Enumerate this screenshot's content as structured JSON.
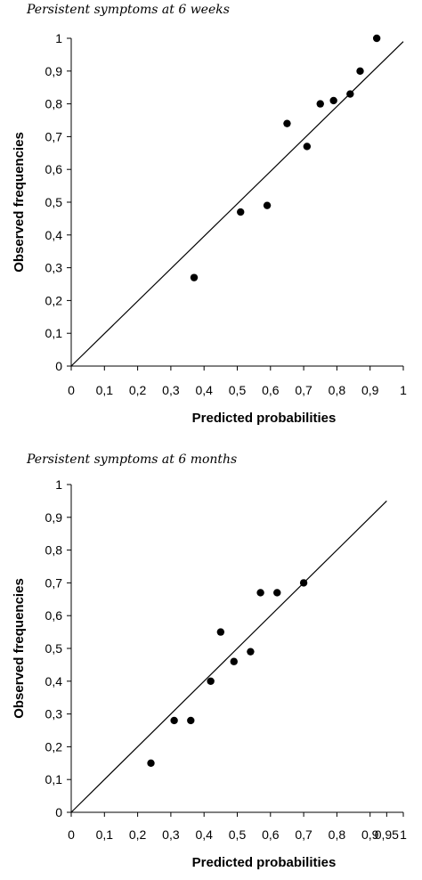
{
  "chart_data": [
    {
      "type": "scatter",
      "title": "Persistent symptoms at 6 weeks",
      "xlabel": "Predicted probabilities",
      "ylabel": "Observed frequencies",
      "xlim": [
        0,
        1
      ],
      "ylim": [
        0,
        1
      ],
      "xticks": [
        "0",
        "0,1",
        "0,2",
        "0,3",
        "0,4",
        "0,5",
        "0,6",
        "0,7",
        "0,8",
        "0,9",
        "1"
      ],
      "yticks": [
        "0",
        "0,1",
        "0,2",
        "0,3",
        "0,4",
        "0,5",
        "0,6",
        "0,7",
        "0,8",
        "0,9",
        "1"
      ],
      "reference_line": {
        "from": [
          0,
          0
        ],
        "to": [
          1,
          0.99
        ]
      },
      "points": [
        {
          "x": 0.37,
          "y": 0.27
        },
        {
          "x": 0.51,
          "y": 0.47
        },
        {
          "x": 0.59,
          "y": 0.49
        },
        {
          "x": 0.65,
          "y": 0.74
        },
        {
          "x": 0.71,
          "y": 0.67
        },
        {
          "x": 0.75,
          "y": 0.8
        },
        {
          "x": 0.79,
          "y": 0.81
        },
        {
          "x": 0.84,
          "y": 0.83
        },
        {
          "x": 0.87,
          "y": 0.9
        },
        {
          "x": 0.92,
          "y": 1.0
        }
      ],
      "grid": false,
      "colors": {
        "points": "#000000",
        "line": "#000000"
      }
    },
    {
      "type": "scatter",
      "title": "Persistent symptoms at 6 months",
      "xlabel": "Predicted probabilities",
      "ylabel": "Observed frequencies",
      "xlim": [
        0,
        1
      ],
      "ylim": [
        0,
        1
      ],
      "xticks": [
        "0",
        "0,1",
        "0,2",
        "0,3",
        "0,4",
        "0,5",
        "0,6",
        "0,7",
        "0,8",
        "0,9",
        "0,95",
        "1"
      ],
      "xtick_values": [
        0,
        0.1,
        0.2,
        0.3,
        0.4,
        0.5,
        0.6,
        0.7,
        0.8,
        0.9,
        0.95,
        1
      ],
      "yticks": [
        "0",
        "0,1",
        "0,2",
        "0,3",
        "0,4",
        "0,5",
        "0,6",
        "0,7",
        "0,8",
        "0,9",
        "1"
      ],
      "reference_line": {
        "from": [
          0,
          0
        ],
        "to": [
          0.95,
          0.95
        ]
      },
      "points": [
        {
          "x": 0.24,
          "y": 0.15
        },
        {
          "x": 0.31,
          "y": 0.28
        },
        {
          "x": 0.36,
          "y": 0.28
        },
        {
          "x": 0.42,
          "y": 0.4
        },
        {
          "x": 0.45,
          "y": 0.55
        },
        {
          "x": 0.49,
          "y": 0.46
        },
        {
          "x": 0.54,
          "y": 0.49
        },
        {
          "x": 0.57,
          "y": 0.67
        },
        {
          "x": 0.62,
          "y": 0.67
        },
        {
          "x": 0.7,
          "y": 0.7
        }
      ],
      "grid": false,
      "colors": {
        "points": "#000000",
        "line": "#000000"
      }
    }
  ]
}
